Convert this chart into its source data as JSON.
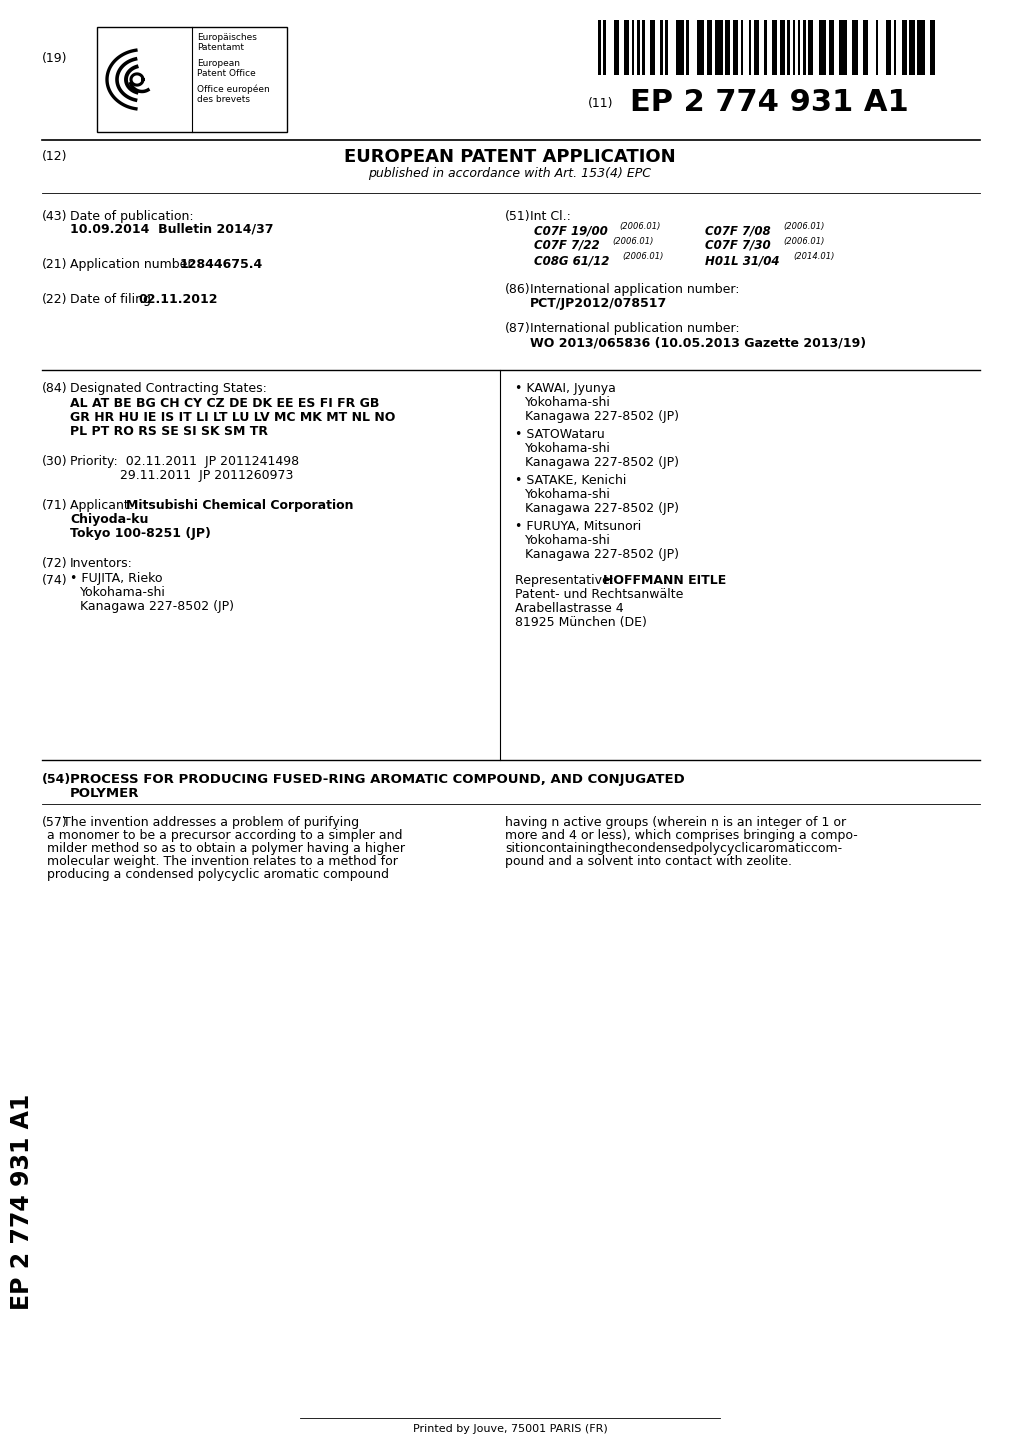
{
  "bg_color": "#ffffff",
  "title_ep": "EP 2 774 931 A1",
  "label_11": "(11)",
  "label_12": "(12)",
  "label_19": "(19)",
  "app_type": "EUROPEAN PATENT APPLICATION",
  "app_subtitle": "published in accordance with Art. 153(4) EPC",
  "label_43": "(43)",
  "pub_label": "Date of publication:",
  "pub_date": "10.09.2014  Bulletin 2014/37",
  "label_21": "(21)",
  "app_num_label": "Application number:",
  "app_num": "12844675.4",
  "label_22": "(22)",
  "filing_label": "Date of filing:",
  "filing_date": "02.11.2012",
  "label_51": "(51)",
  "intcl_label": "Int Cl.:",
  "label_86": "(86)",
  "intl_app_label": "International application number:",
  "intl_app_num": "PCT/JP2012/078517",
  "label_87": "(87)",
  "intl_pub_label": "International publication number:",
  "intl_pub_num": "WO 2013/065836 (10.05.2013 Gazette 2013/19)",
  "label_84": "(84)",
  "states_label": "Designated Contracting States:",
  "label_30": "(30)",
  "label_71": "(71)",
  "label_72": "(72)",
  "label_74": "(74)",
  "label_54": "(54)",
  "invention_title_line1": "PROCESS FOR PRODUCING FUSED-RING AROMATIC COMPOUND, AND CONJUGATED",
  "invention_title_line2": "POLYMER",
  "label_57": "(57)",
  "footer": "Printed by Jouve, 75001 PARIS (FR)",
  "sidebar_text": "EP 2 774 931 A1"
}
